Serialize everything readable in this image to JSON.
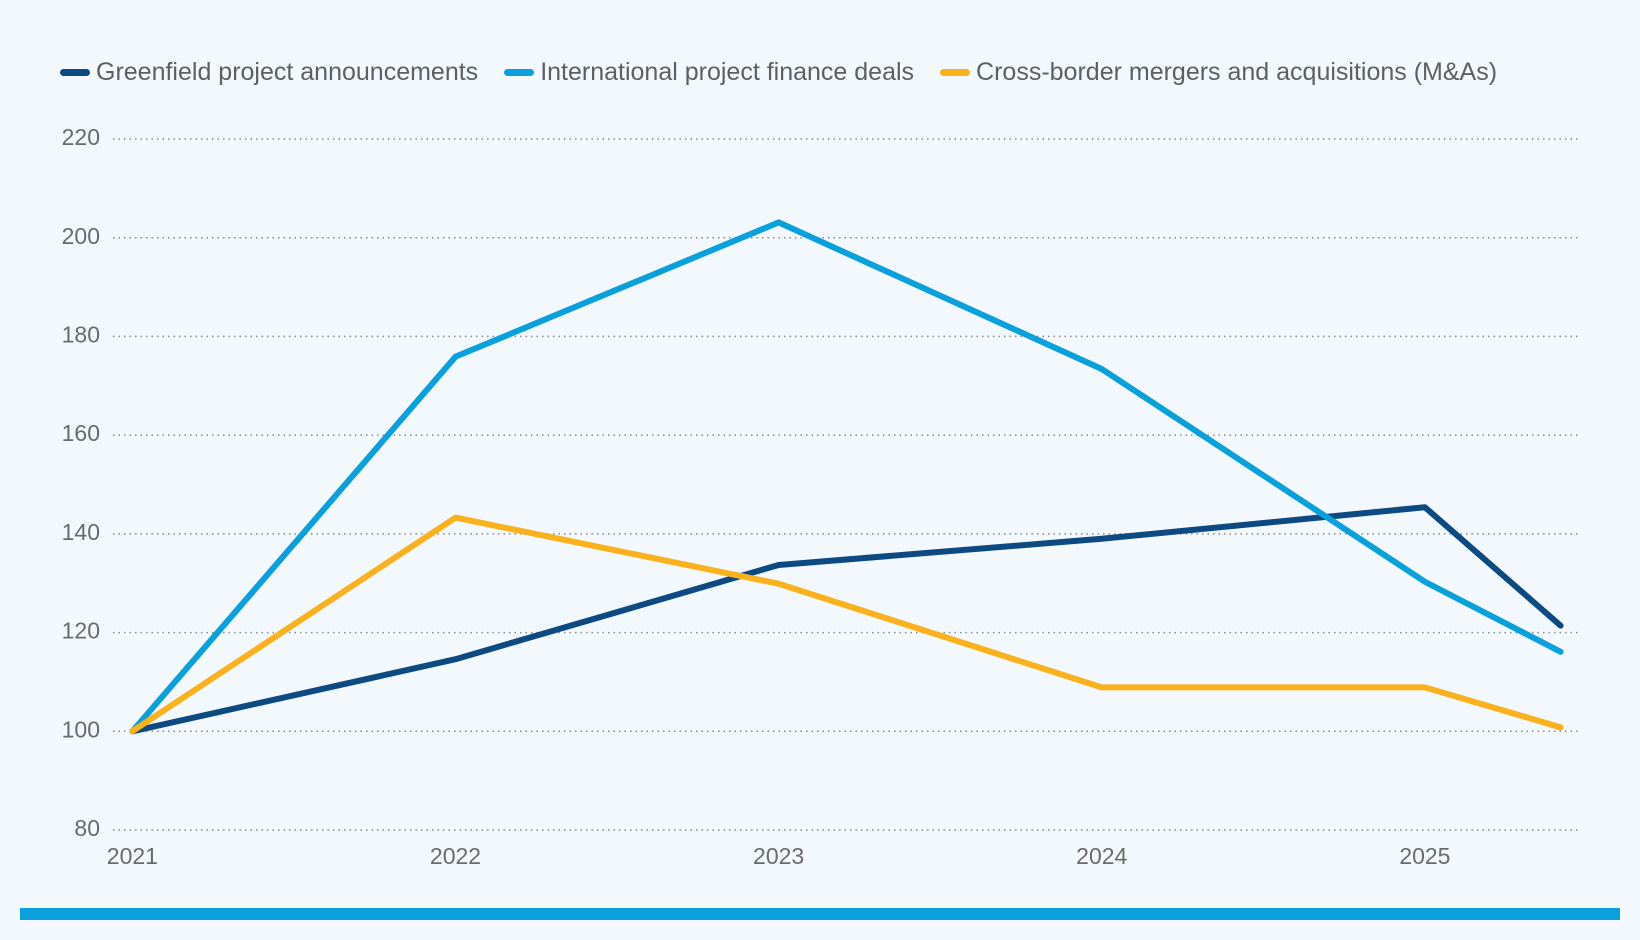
{
  "chart_data": {
    "type": "line",
    "x": [
      2021,
      2022,
      2023,
      2024,
      2025,
      2025.42
    ],
    "series": [
      {
        "name": "Greenfield project announcements",
        "color": "#0d4a82",
        "values": [
          100,
          114.6,
          133.7,
          139,
          145.4,
          121.4
        ]
      },
      {
        "name": "International project finance deals",
        "color": "#0aa0dc",
        "values": [
          100,
          175.9,
          203.1,
          173.4,
          130.3,
          116.1
        ]
      },
      {
        "name": "Cross-border mergers and acquisitions (M&As)",
        "color": "#f9b11e",
        "values": [
          100,
          143.3,
          129.9,
          108.9,
          108.9,
          100.8
        ]
      }
    ],
    "xlim": [
      2020.94,
      2025.48
    ],
    "xticks": [
      2021,
      2022,
      2023,
      2024,
      2025
    ],
    "ylim": [
      80,
      220
    ],
    "yticks": [
      80,
      100,
      120,
      140,
      160,
      180,
      200,
      220
    ],
    "grid": true
  }
}
